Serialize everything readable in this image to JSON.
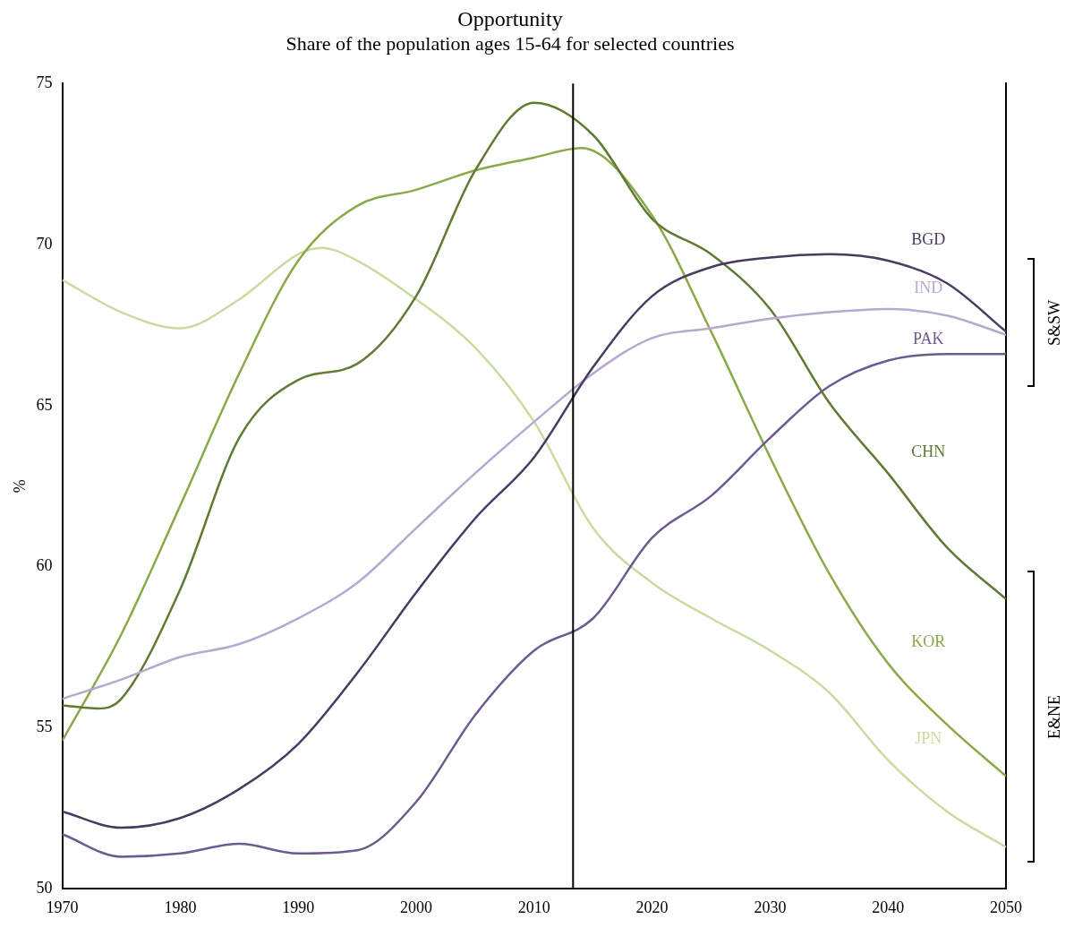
{
  "chart_data": {
    "type": "line",
    "title": "Opportunity",
    "subtitle": "Share of the population ages 15-64 for selected countries",
    "ylabel": "%",
    "xlim": [
      1970,
      2050
    ],
    "xticks": [
      1970,
      1980,
      1990,
      2000,
      2010,
      2020,
      2030,
      2040,
      2050
    ],
    "ylim": [
      50,
      75
    ],
    "yticks": [
      50,
      55,
      60,
      65,
      70,
      75
    ],
    "grid": false,
    "legend": false,
    "marker": "none",
    "line_style": "solid",
    "ref_lines": [
      {
        "axis": "x",
        "value": 2013.3,
        "color": "#000000"
      }
    ],
    "annotations": [
      "S&SW",
      "E&NE"
    ],
    "series": [
      {
        "name": "BGD",
        "color": "#4a3a60",
        "x": [
          1970,
          1975,
          1980,
          1985,
          1990,
          1995,
          2000,
          2005,
          2010,
          2015,
          2020,
          2025,
          2030,
          2035,
          2040,
          2045,
          2050
        ],
        "values": [
          52.4,
          51.9,
          52.2,
          53.1,
          54.5,
          56.7,
          59.2,
          61.5,
          63.4,
          66.2,
          68.4,
          69.3,
          69.6,
          69.7,
          69.5,
          68.8,
          67.3
        ]
      },
      {
        "name": "IND",
        "color": "#b8a8d0",
        "x": [
          1970,
          1975,
          1980,
          1985,
          1990,
          1995,
          2000,
          2005,
          2010,
          2015,
          2020,
          2025,
          2030,
          2035,
          2040,
          2045,
          2050
        ],
        "values": [
          55.9,
          56.5,
          57.2,
          57.6,
          58.4,
          59.5,
          61.2,
          62.9,
          64.5,
          66.0,
          67.1,
          67.4,
          67.7,
          67.9,
          68.0,
          67.8,
          67.2
        ]
      },
      {
        "name": "PAK",
        "color": "#6f5a90",
        "x": [
          1970,
          1975,
          1980,
          1985,
          1990,
          1995,
          2000,
          2005,
          2010,
          2015,
          2020,
          2025,
          2030,
          2035,
          2040,
          2045,
          2050
        ],
        "values": [
          51.7,
          51.0,
          51.1,
          51.4,
          51.1,
          51.2,
          52.7,
          55.4,
          57.4,
          58.4,
          60.9,
          62.2,
          64.0,
          65.6,
          66.4,
          66.6,
          66.6
        ]
      },
      {
        "name": "CHN",
        "color": "#5f7a32",
        "x": [
          1970,
          1973,
          1975,
          1980,
          1985,
          1990,
          1995,
          2000,
          2005,
          2010,
          2015,
          2020,
          2025,
          2030,
          2035,
          2040,
          2045,
          2050
        ],
        "values": [
          55.7,
          55.6,
          55.9,
          59.3,
          64.0,
          65.8,
          66.3,
          68.4,
          72.3,
          74.4,
          73.4,
          70.8,
          69.7,
          68.0,
          65.1,
          62.9,
          60.6,
          59.0
        ]
      },
      {
        "name": "KOR",
        "color": "#8aaa4a",
        "x": [
          1970,
          1975,
          1980,
          1985,
          1990,
          1995,
          2000,
          2005,
          2010,
          2014,
          2020,
          2025,
          2030,
          2035,
          2040,
          2045,
          2050
        ],
        "values": [
          54.6,
          57.9,
          61.9,
          66.0,
          69.5,
          71.2,
          71.7,
          72.3,
          72.7,
          73.0,
          70.9,
          67.3,
          63.4,
          59.8,
          57.0,
          55.1,
          53.5
        ]
      },
      {
        "name": "JPN",
        "color": "#c8dca0",
        "x": [
          1970,
          1975,
          1980,
          1985,
          1990,
          1992,
          1995,
          2000,
          2005,
          2010,
          2015,
          2020,
          2025,
          2030,
          2035,
          2040,
          2045,
          2050
        ],
        "values": [
          68.9,
          67.9,
          67.4,
          68.3,
          69.7,
          69.9,
          69.5,
          68.3,
          66.8,
          64.5,
          61.2,
          59.5,
          58.4,
          57.4,
          56.1,
          54.0,
          52.4,
          51.3
        ]
      }
    ]
  }
}
